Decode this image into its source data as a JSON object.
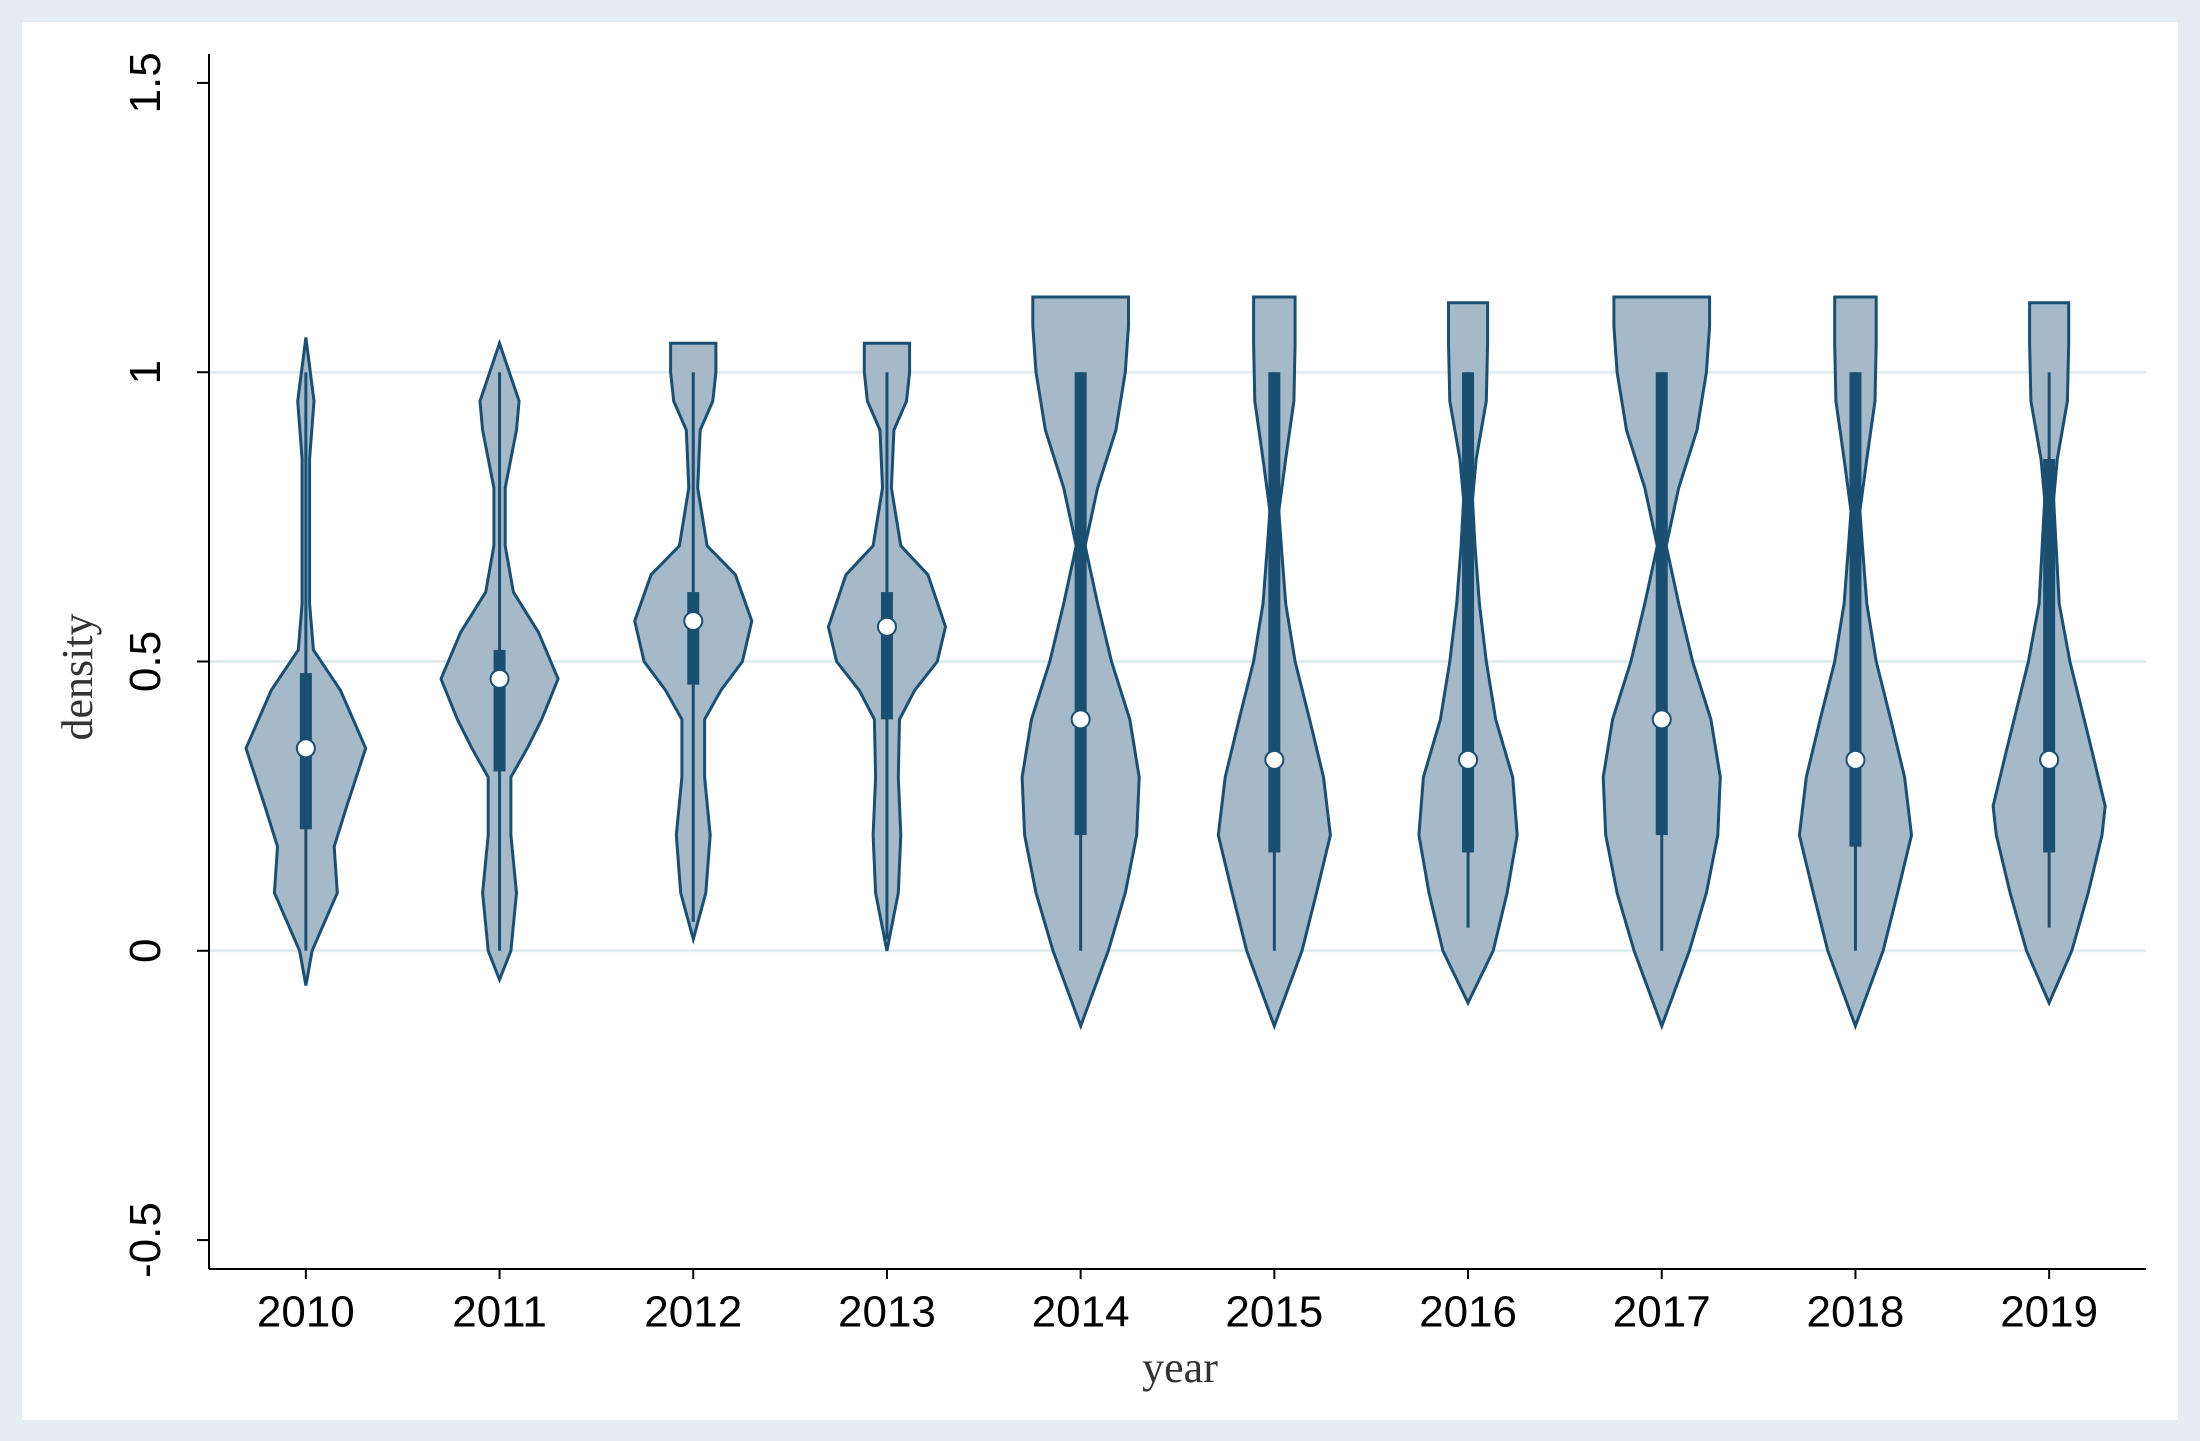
{
  "chart_data": {
    "type": "violin",
    "x_label": "year",
    "y_label": "density",
    "categories": [
      "2010",
      "2011",
      "2012",
      "2013",
      "2014",
      "2015",
      "2016",
      "2017",
      "2018",
      "2019"
    ],
    "ylim": [
      -0.55,
      1.55
    ],
    "yticks": [
      -0.5,
      0,
      0.5,
      1,
      1.5
    ],
    "grid": true,
    "fill_color": "#a6b9c9",
    "line_color": "#1b4f72",
    "median_color": "#ffffff",
    "violins": [
      {
        "kde_y": [
          -0.06,
          0,
          0.1,
          0.18,
          0.25,
          0.35,
          0.45,
          0.52,
          0.6,
          0.85,
          0.95,
          1.06
        ],
        "kde_density": [
          0,
          0.1,
          0.5,
          0.45,
          0.65,
          0.95,
          0.55,
          0.12,
          0.06,
          0.06,
          0.13,
          0
        ],
        "whisker_low": 0,
        "q1": 0.21,
        "median": 0.35,
        "q3": 0.48,
        "whisker_high": 1
      },
      {
        "kde_y": [
          -0.05,
          0,
          0.1,
          0.2,
          0.3,
          0.35,
          0.4,
          0.47,
          0.55,
          0.62,
          0.7,
          0.8,
          0.9,
          0.95,
          1.05
        ],
        "kde_density": [
          0,
          0.18,
          0.27,
          0.18,
          0.18,
          0.44,
          0.67,
          0.93,
          0.62,
          0.22,
          0.09,
          0.09,
          0.27,
          0.31,
          0
        ],
        "whisker_low": 0,
        "q1": 0.31,
        "median": 0.47,
        "q3": 0.52,
        "whisker_high": 1
      },
      {
        "kde_y": [
          0.02,
          0.1,
          0.2,
          0.3,
          0.4,
          0.45,
          0.5,
          0.57,
          0.65,
          0.7,
          0.8,
          0.9,
          0.95,
          1.0,
          1.05,
          1.05
        ],
        "kde_density": [
          0,
          0.2,
          0.27,
          0.18,
          0.18,
          0.44,
          0.78,
          0.93,
          0.67,
          0.22,
          0.07,
          0.11,
          0.31,
          0.36,
          0.36,
          0
        ],
        "whisker_low": 0.05,
        "q1": 0.46,
        "median": 0.57,
        "q3": 0.62,
        "whisker_high": 1
      },
      {
        "kde_y": [
          0,
          0.1,
          0.2,
          0.3,
          0.4,
          0.45,
          0.5,
          0.56,
          0.65,
          0.7,
          0.8,
          0.9,
          0.95,
          1.0,
          1.05,
          1.05
        ],
        "kde_density": [
          0,
          0.18,
          0.22,
          0.18,
          0.2,
          0.44,
          0.8,
          0.93,
          0.65,
          0.22,
          0.07,
          0.11,
          0.31,
          0.36,
          0.36,
          0
        ],
        "whisker_low": 0.02,
        "q1": 0.4,
        "median": 0.56,
        "q3": 0.62,
        "whisker_high": 1
      },
      {
        "kde_y": [
          -0.13,
          0,
          0.1,
          0.2,
          0.3,
          0.4,
          0.5,
          0.6,
          0.7,
          0.8,
          0.9,
          1.0,
          1.08,
          1.13,
          1.13
        ],
        "kde_density": [
          0,
          0.44,
          0.71,
          0.89,
          0.93,
          0.78,
          0.49,
          0.27,
          0.07,
          0.27,
          0.56,
          0.71,
          0.76,
          0.76,
          0
        ],
        "whisker_low": 0,
        "q1": 0.2,
        "median": 0.4,
        "q3": 1,
        "whisker_high": 1
      },
      {
        "kde_y": [
          -0.13,
          0,
          0.1,
          0.2,
          0.3,
          0.4,
          0.5,
          0.6,
          0.7,
          0.76,
          0.85,
          0.95,
          1.05,
          1.13,
          1.13
        ],
        "kde_density": [
          0,
          0.44,
          0.67,
          0.89,
          0.78,
          0.56,
          0.33,
          0.18,
          0.11,
          0.07,
          0.18,
          0.31,
          0.33,
          0.33,
          0
        ],
        "whisker_low": 0,
        "q1": 0.17,
        "median": 0.33,
        "q3": 1,
        "whisker_high": 1
      },
      {
        "kde_y": [
          -0.09,
          0,
          0.1,
          0.2,
          0.3,
          0.4,
          0.5,
          0.6,
          0.7,
          0.78,
          0.85,
          0.95,
          1.05,
          1.12,
          1.12
        ],
        "kde_density": [
          0,
          0.4,
          0.62,
          0.78,
          0.71,
          0.44,
          0.29,
          0.18,
          0.11,
          0.07,
          0.13,
          0.29,
          0.31,
          0.31,
          0
        ],
        "whisker_low": 0.04,
        "q1": 0.17,
        "median": 0.33,
        "q3": 1,
        "whisker_high": 1
      },
      {
        "kde_y": [
          -0.13,
          0,
          0.1,
          0.2,
          0.3,
          0.4,
          0.5,
          0.6,
          0.7,
          0.8,
          0.9,
          1.0,
          1.08,
          1.13,
          1.13
        ],
        "kde_density": [
          0,
          0.44,
          0.71,
          0.89,
          0.93,
          0.78,
          0.49,
          0.27,
          0.07,
          0.27,
          0.56,
          0.71,
          0.76,
          0.76,
          0
        ],
        "whisker_low": 0,
        "q1": 0.2,
        "median": 0.4,
        "q3": 1,
        "whisker_high": 1
      },
      {
        "kde_y": [
          -0.13,
          0,
          0.1,
          0.2,
          0.3,
          0.4,
          0.5,
          0.6,
          0.7,
          0.76,
          0.85,
          0.95,
          1.05,
          1.13,
          1.13
        ],
        "kde_density": [
          0,
          0.44,
          0.67,
          0.89,
          0.78,
          0.56,
          0.33,
          0.18,
          0.11,
          0.07,
          0.18,
          0.31,
          0.33,
          0.33,
          0
        ],
        "whisker_low": 0,
        "q1": 0.18,
        "median": 0.33,
        "q3": 1,
        "whisker_high": 1
      },
      {
        "kde_y": [
          -0.09,
          0,
          0.1,
          0.2,
          0.25,
          0.35,
          0.5,
          0.6,
          0.7,
          0.78,
          0.85,
          0.95,
          1.05,
          1.12,
          1.12
        ],
        "kde_density": [
          0,
          0.36,
          0.62,
          0.84,
          0.89,
          0.67,
          0.33,
          0.16,
          0.11,
          0.07,
          0.13,
          0.29,
          0.31,
          0.31,
          0
        ],
        "whisker_low": 0.04,
        "q1": 0.17,
        "median": 0.33,
        "q3": 0.85,
        "whisker_high": 1
      }
    ]
  }
}
